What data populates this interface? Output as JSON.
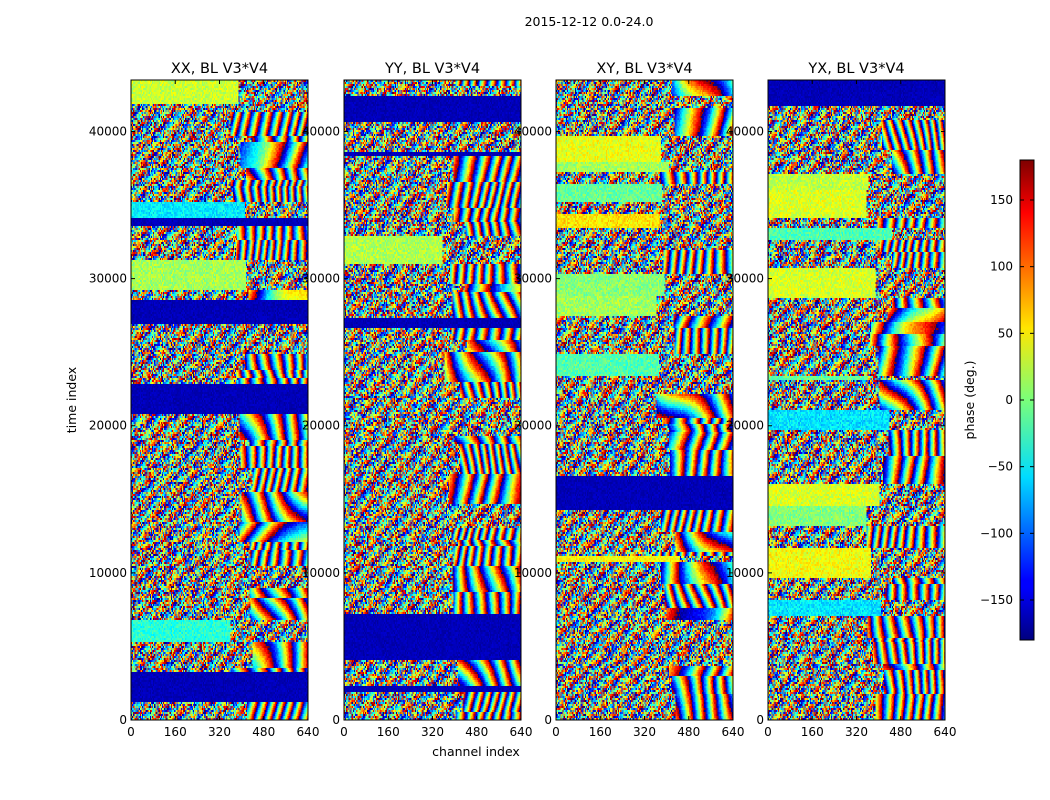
{
  "chart_data": {
    "type": "heatmap",
    "suptitle": "2015-12-12 0.0-24.0",
    "xlabel": "channel index",
    "ylabel": "time index",
    "xlim": [
      0,
      640
    ],
    "ylim": [
      0,
      43500
    ],
    "x_ticks": [
      0,
      160,
      320,
      480,
      640
    ],
    "x_tick_labels": [
      "0",
      "160",
      "320",
      "480",
      "640"
    ],
    "y_ticks": [
      0,
      10000,
      20000,
      30000,
      40000
    ],
    "y_tick_labels": [
      "0",
      "10000",
      "20000",
      "30000",
      "40000"
    ],
    "colormap": "jet",
    "panels": [
      {
        "title": "XX, BL V3*V4"
      },
      {
        "title": "YY, BL V3*V4"
      },
      {
        "title": "XY, BL V3*V4"
      },
      {
        "title": "YX, BL V3*V4"
      }
    ],
    "colorbar": {
      "label": "phase (deg.)",
      "range": [
        -180,
        180
      ],
      "ticks": [
        -150,
        -100,
        -50,
        0,
        50,
        100,
        150
      ],
      "tick_labels": [
        "−150",
        "−100",
        "−50",
        "0",
        "50",
        "100",
        "150"
      ]
    }
  }
}
